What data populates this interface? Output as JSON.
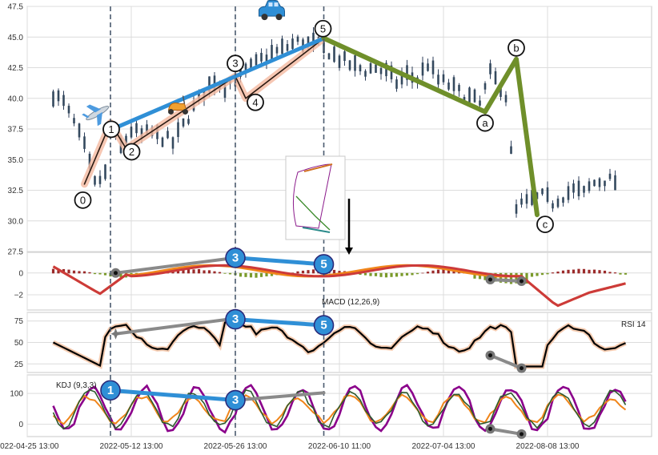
{
  "chart_data": [
    {
      "type": "line",
      "panel": "price",
      "ylim": [
        27.5,
        47.5
      ],
      "yticks": [
        "27.5",
        "30.0",
        "32.5",
        "35.0",
        "37.5",
        "40.0",
        "42.5",
        "45.0",
        "47.5"
      ],
      "ytick_values": [
        27.5,
        30,
        32.5,
        35,
        37.5,
        40,
        42.5,
        45,
        47.5
      ],
      "xticks": [
        "2022-04-25 13:00",
        "2022-05-12 13:00",
        "2022-05-26 13:00",
        "2022-06-10 11:00",
        "2022-07-04 13:00",
        "2022-08-08 13:00"
      ],
      "xtick_index": [
        0,
        20,
        40,
        60,
        80,
        100
      ],
      "vlines_index": [
        16,
        40,
        57
      ],
      "price_series": {
        "name": "price",
        "index": [
          5,
          7,
          9,
          11,
          13,
          15,
          16,
          18,
          20,
          22,
          24,
          26,
          28,
          30,
          32,
          34,
          36,
          38,
          40,
          42,
          44,
          46,
          48,
          50,
          52,
          54,
          56,
          57,
          59,
          61,
          63,
          65,
          67,
          69,
          71,
          73,
          75,
          77,
          79,
          81,
          83,
          85,
          87,
          89,
          91,
          92,
          94,
          95,
          97,
          99,
          101,
          103,
          105,
          107,
          109,
          111,
          113
        ],
        "values": [
          40.4,
          39.6,
          38,
          36,
          33,
          33.8,
          37.3,
          36,
          37.4,
          37,
          37.2,
          36.8,
          36.4,
          37.8,
          39.2,
          40.6,
          41.5,
          41,
          41.8,
          42.2,
          42.8,
          43.5,
          43.8,
          44.2,
          44.6,
          44.5,
          44.4,
          44.1,
          43.5,
          43,
          42.6,
          42.3,
          42.5,
          42.1,
          41.3,
          41.9,
          41.6,
          42.8,
          41.5,
          41.1,
          40.5,
          40.1,
          39.5,
          42,
          41,
          40.2,
          30.8,
          31.3,
          31.7,
          32,
          31.5,
          32.1,
          32.5,
          32.3,
          33.1,
          33.4,
          33.2
        ]
      },
      "wave_primary": {
        "index": [
          11,
          16,
          19,
          40,
          42,
          57
        ],
        "values": [
          33,
          38,
          35.9,
          41.8,
          40,
          44.9
        ],
        "labels": [
          "0",
          "1",
          "2",
          "3",
          "4",
          "5"
        ]
      },
      "wave_corrective": {
        "index": [
          57,
          88,
          94,
          98
        ],
        "values": [
          44.9,
          38.9,
          43.2,
          30.5
        ],
        "labels": [
          "5",
          "a",
          "b",
          "c"
        ]
      },
      "trend_channel": {
        "index": [
          17,
          57
        ],
        "values": [
          37.6,
          44.9
        ]
      },
      "markers": {
        "plane": "airplane-icon",
        "scooter": "scooter-icon",
        "car": "car-icon",
        "thumbnail": "mini-chart-thumbnail"
      }
    },
    {
      "type": "bar",
      "panel": "macd",
      "annotation": "MACD (12,26,9)",
      "ylim": [
        -3.4,
        1.9
      ],
      "yticks": [
        "0",
        "−2"
      ],
      "ytick_values": [
        0,
        -2
      ],
      "divergence": [
        {
          "index": [
            40,
            57
          ],
          "values": [
            1.4,
            0.8
          ],
          "labels": [
            "3",
            "5"
          ]
        }
      ],
      "dots": [
        {
          "index": [
            17
          ],
          "values": [
            0
          ]
        },
        {
          "index": [
            89,
            95
          ],
          "values": [
            -0.6,
            -0.75
          ]
        }
      ]
    },
    {
      "type": "line",
      "panel": "rsi",
      "annotation": "RSI 14",
      "ylim": [
        15,
        85
      ],
      "yticks": [
        "25",
        "50",
        "75"
      ],
      "ytick_values": [
        25,
        50,
        75
      ],
      "divergence": [
        {
          "index": [
            40,
            57
          ],
          "values": [
            77,
            70
          ],
          "labels": [
            "3",
            "5"
          ]
        }
      ],
      "grey_lines": [
        {
          "index": [
            17,
            40
          ],
          "values": [
            60,
            78
          ]
        },
        {
          "index": [
            89,
            95
          ],
          "values": [
            35,
            20
          ]
        }
      ]
    },
    {
      "type": "line",
      "panel": "kdj",
      "annotation": "KDJ (9,3,3)",
      "ylim": [
        -40,
        160
      ],
      "yticks": [
        "0",
        "100"
      ],
      "ytick_values": [
        0,
        100
      ],
      "divergence": [
        {
          "index": [
            16,
            40
          ],
          "values": [
            110,
            78
          ],
          "labels": [
            "1",
            "3"
          ]
        }
      ],
      "grey_lines": [
        {
          "index": [
            40,
            57
          ],
          "values": [
            78,
            102
          ]
        },
        {
          "index": [
            89,
            95
          ],
          "values": [
            -15,
            -32
          ]
        }
      ]
    }
  ]
}
